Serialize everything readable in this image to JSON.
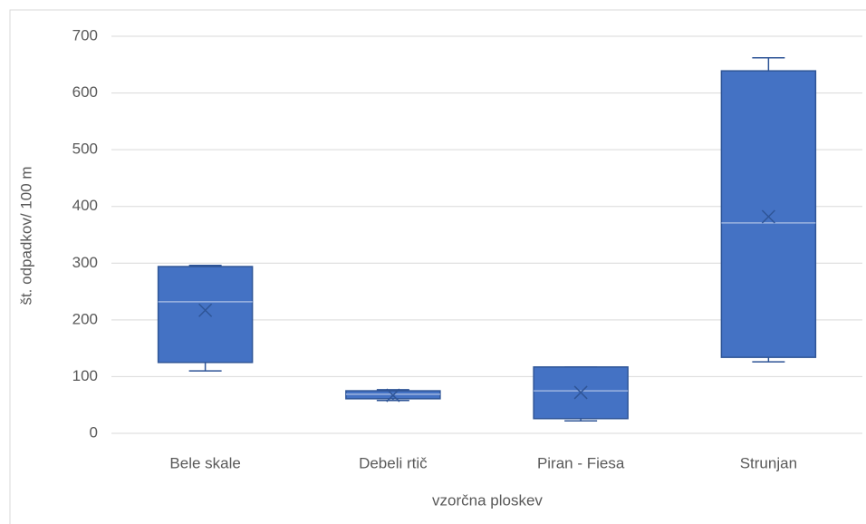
{
  "chart_data": {
    "type": "box",
    "categories": [
      "Bele skale",
      "Debeli rtič",
      "Piran - Fiesa",
      "Strunjan"
    ],
    "series": [
      {
        "color": "#4472c4",
        "boxes": [
          {
            "min": 110,
            "q1": 125,
            "median": 232,
            "q3": 294,
            "max": 296,
            "mean": 217
          },
          {
            "min": 58,
            "q1": 61,
            "median": 69,
            "q3": 75,
            "max": 77,
            "mean": 67
          },
          {
            "min": 22,
            "q1": 26,
            "median": 75,
            "q3": 117,
            "max": 117,
            "mean": 72
          },
          {
            "min": 126,
            "q1": 134,
            "median": 371,
            "q3": 639,
            "max": 662,
            "mean": 382
          }
        ]
      }
    ],
    "ylabel": "št. odpadkov/ 100 m",
    "xlabel": "vzorčna ploskev",
    "ylim": [
      0,
      700
    ],
    "yticks": [
      0,
      100,
      200,
      300,
      400,
      500,
      600,
      700
    ],
    "grid": true
  }
}
